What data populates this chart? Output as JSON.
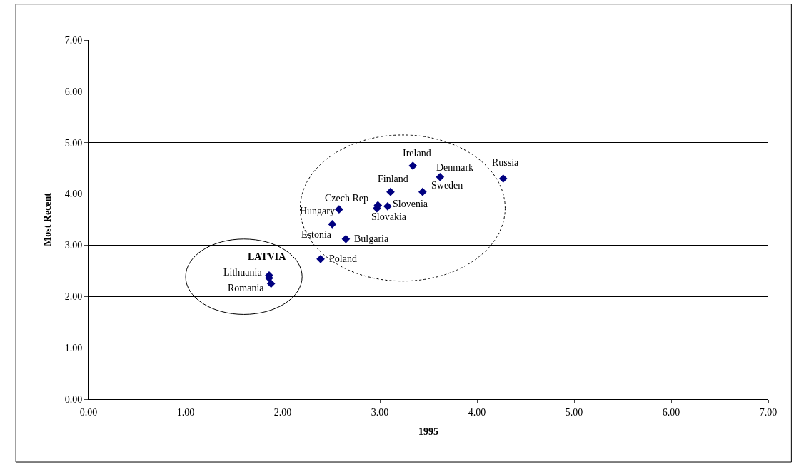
{
  "chart_data": {
    "type": "scatter",
    "xlabel": "1995",
    "ylabel": "Most Recent",
    "x": [
      3.34,
      3.62,
      4.27,
      3.11,
      3.44,
      2.98,
      3.08,
      2.97,
      2.58,
      2.51,
      2.65,
      2.39,
      1.86,
      1.86,
      1.88
    ],
    "values": [
      4.55,
      4.33,
      4.3,
      4.04,
      4.04,
      3.78,
      3.76,
      3.72,
      3.7,
      3.41,
      3.12,
      2.73,
      2.36,
      2.41,
      2.25
    ],
    "color": "#000080",
    "marker": "diamond",
    "annotations": [
      {
        "text": "Ireland",
        "x": 3.34,
        "y": 4.55
      },
      {
        "text": "Denmark",
        "x": 3.62,
        "y": 4.33
      },
      {
        "text": "Russia",
        "x": 4.27,
        "y": 4.3
      },
      {
        "text": "Finland",
        "x": 3.11,
        "y": 4.04
      },
      {
        "text": "Sweden",
        "x": 3.44,
        "y": 4.04
      },
      {
        "text": "Czech Rep",
        "x": 2.98,
        "y": 3.78
      },
      {
        "text": "Slovenia",
        "x": 3.08,
        "y": 3.76
      },
      {
        "text": "Slovakia",
        "x": 2.97,
        "y": 3.72
      },
      {
        "text": "Hungary",
        "x": 2.58,
        "y": 3.7
      },
      {
        "text": "Estonia",
        "x": 2.51,
        "y": 3.41
      },
      {
        "text": "Bulgaria",
        "x": 2.65,
        "y": 3.12
      },
      {
        "text": "Poland",
        "x": 2.39,
        "y": 2.73
      },
      {
        "text": "LATVIA",
        "x": 1.86,
        "y": 2.36
      },
      {
        "text": "Lithuania",
        "x": 1.86,
        "y": 2.41
      },
      {
        "text": "Romania",
        "x": 1.88,
        "y": 2.25
      }
    ],
    "xlim": [
      0,
      7
    ],
    "ylim": [
      0,
      7
    ],
    "xticks": [
      {
        "value": 0,
        "label": "0.00"
      },
      {
        "value": 1,
        "label": "1.00"
      },
      {
        "value": 2,
        "label": "2.00"
      },
      {
        "value": 3,
        "label": "3.00"
      },
      {
        "value": 4,
        "label": "4.00"
      },
      {
        "value": 5,
        "label": "5.00"
      },
      {
        "value": 6,
        "label": "6.00"
      },
      {
        "value": 7,
        "label": "7.00"
      }
    ],
    "yticks": [
      {
        "value": 0,
        "label": "0.00"
      },
      {
        "value": 1,
        "label": "1.00"
      },
      {
        "value": 2,
        "label": "2.00"
      },
      {
        "value": 3,
        "label": "3.00"
      },
      {
        "value": 4,
        "label": "4.00"
      },
      {
        "value": 5,
        "label": "5.00"
      },
      {
        "value": 6,
        "label": "6.00"
      },
      {
        "value": 7,
        "label": "7.00"
      }
    ],
    "grid": "y"
  }
}
